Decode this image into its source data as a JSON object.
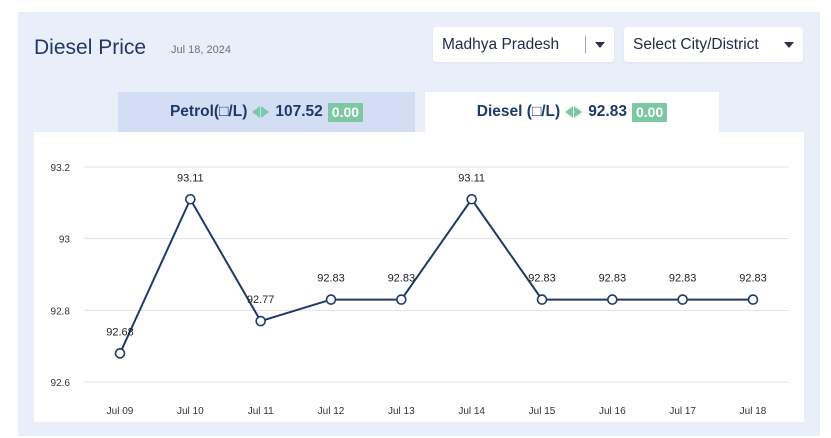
{
  "header": {
    "title": "Diesel Price",
    "date": "Jul 18, 2024"
  },
  "filters": {
    "state": "Madhya Pradesh",
    "city_placeholder": "Select City/District"
  },
  "tabs": [
    {
      "label": "Petrol(□/L)",
      "price": "107.52",
      "change": "0.00",
      "active": false
    },
    {
      "label": "Diesel (□/L)",
      "price": "92.83",
      "change": "0.00",
      "active": true
    }
  ],
  "colors": {
    "panel_bg": "#e9eef9",
    "title": "#1f3a68",
    "inactive_tab": "#d3def5",
    "change_badge": "#7bc8a2",
    "line": "#1f3a68"
  },
  "icons": {
    "dropdown": "caret-down-icon",
    "change": "left-right-arrows-icon"
  },
  "chart_data": {
    "type": "line",
    "categories": [
      "Jul 09",
      "Jul 10",
      "Jul 11",
      "Jul 12",
      "Jul 13",
      "Jul 14",
      "Jul 15",
      "Jul 16",
      "Jul 17",
      "Jul 18"
    ],
    "values": [
      92.68,
      93.11,
      92.77,
      92.83,
      92.83,
      93.11,
      92.83,
      92.83,
      92.83,
      92.83
    ],
    "data_labels": [
      "92.68",
      "93.11",
      "92.77",
      "92.83",
      "92.83",
      "93.11",
      "92.83",
      "92.83",
      "92.83",
      "92.83"
    ],
    "y_ticks": [
      "92.6",
      "92.8",
      "93",
      "93.2"
    ],
    "ylim": [
      92.6,
      93.2
    ],
    "grid": true,
    "title": "",
    "xlabel": "",
    "ylabel": ""
  }
}
